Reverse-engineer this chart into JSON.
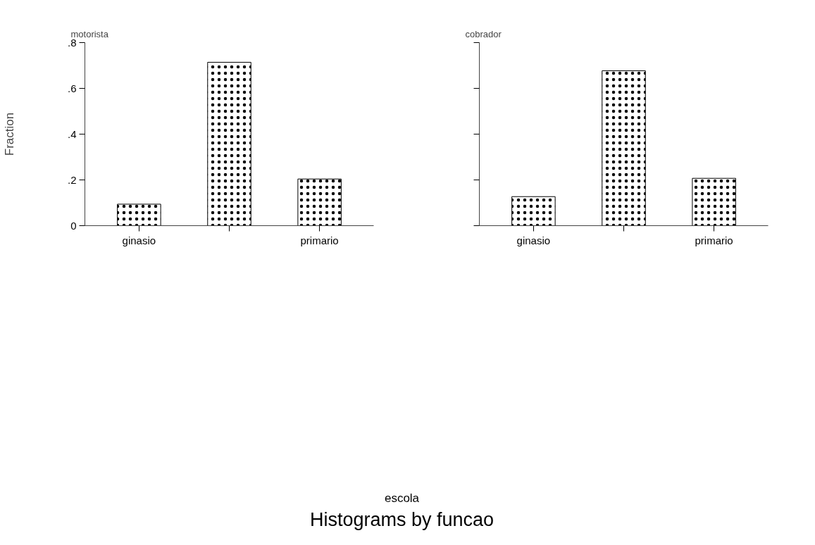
{
  "chart_data": [
    {
      "type": "bar",
      "title": "motorista",
      "ylabel": "Fraction",
      "categories": [
        "ginasio",
        null,
        "primario"
      ],
      "series": [
        {
          "color": "#ffffff",
          "values": [
            0.094,
            0.714,
            0.204
          ]
        }
      ],
      "ylim": [
        0,
        0.8
      ],
      "yticks": [
        {
          "value": 0,
          "label": "0"
        },
        {
          "value": 0.2,
          "label": ".2"
        },
        {
          "value": 0.4,
          "label": ".4"
        },
        {
          "value": 0.6,
          "label": ".6"
        },
        {
          "value": 0.8,
          "label": ".8"
        }
      ],
      "grid": false
    },
    {
      "type": "bar",
      "title": "cobrador",
      "xlabel": "escola",
      "annotations": [
        "Histograms by funcao"
      ],
      "categories": [
        "ginasio",
        null,
        "primario"
      ],
      "series": [
        {
          "color": "#ffffff",
          "values": [
            0.127,
            0.677,
            0.207
          ]
        }
      ],
      "ylim": [
        0,
        0.8
      ],
      "yticks": [
        {
          "value": 0,
          "label": null
        },
        {
          "value": 0.2,
          "label": null
        },
        {
          "value": 0.4,
          "label": null
        },
        {
          "value": 0.6,
          "label": null
        },
        {
          "value": 0.8,
          "label": null
        }
      ],
      "tick_labels": "x",
      "grid": false
    }
  ]
}
